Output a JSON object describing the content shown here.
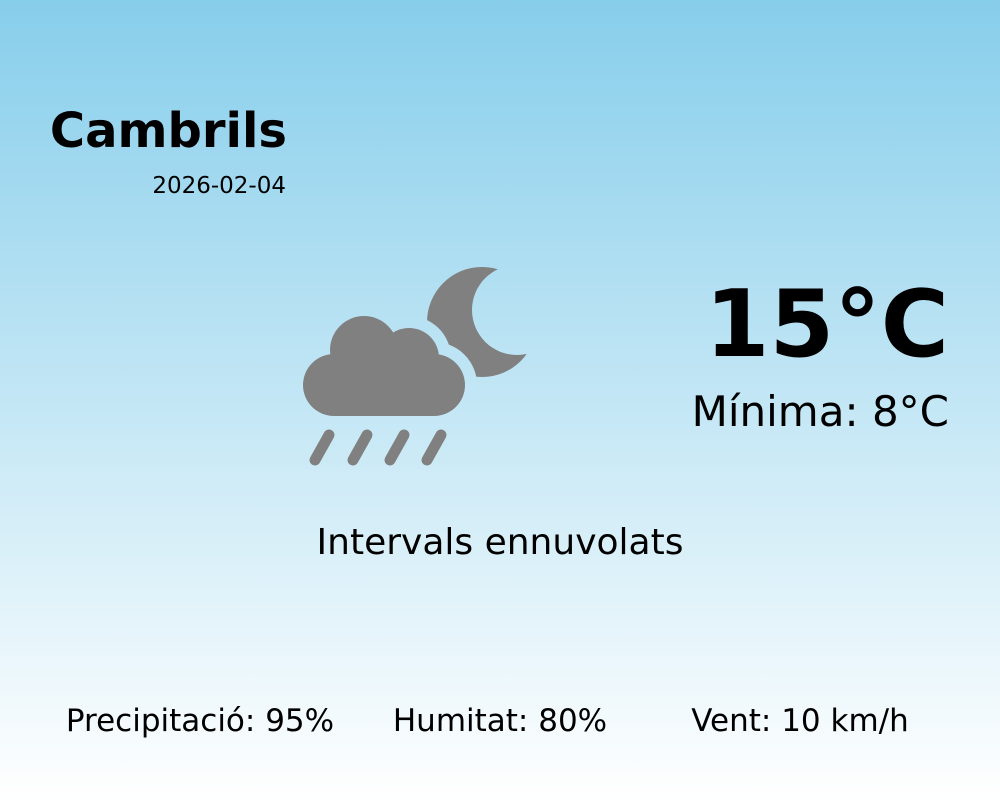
{
  "location": {
    "city": "Cambrils",
    "date": "2026-02-04"
  },
  "current": {
    "temperature": "15°C",
    "minimum": "Mínima: 8°C",
    "description": "Intervals ennuvolats",
    "icon": "cloud-rain-moon-icon"
  },
  "stats": {
    "precipitation": "Precipitació: 95%",
    "humidity": "Humitat: 80%",
    "wind": "Vent: 10 km/h"
  },
  "colors": {
    "sky_top": "#87CEEB",
    "sky_bottom": "#FFFFFF",
    "icon": "#808080"
  }
}
